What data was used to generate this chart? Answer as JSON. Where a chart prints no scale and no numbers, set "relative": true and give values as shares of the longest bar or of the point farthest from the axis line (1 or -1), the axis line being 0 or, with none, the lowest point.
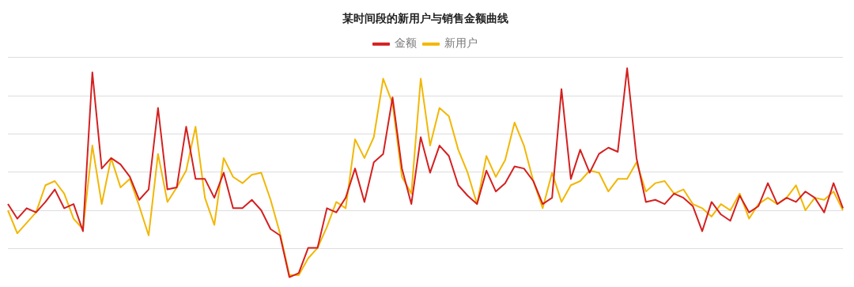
{
  "chart_data": {
    "type": "line",
    "title": "某时间段的新用户与销售金额曲线",
    "relative": true,
    "grid": "y",
    "legend": "top",
    "marker": "none",
    "line_style": "solid",
    "categories": [
      null,
      null,
      null,
      null,
      null,
      null,
      null,
      null,
      null,
      null,
      null,
      null,
      null,
      null,
      null,
      null,
      null,
      null,
      null,
      null,
      null,
      null,
      null,
      null,
      null,
      null,
      null,
      null,
      null,
      null,
      null,
      null,
      null,
      null,
      null,
      null,
      null,
      null,
      null,
      null,
      null,
      null,
      null,
      null,
      null,
      null,
      null,
      null,
      null,
      null,
      null,
      null,
      null,
      null,
      null,
      null,
      null,
      null,
      null,
      null,
      null,
      null,
      null,
      null,
      null,
      null,
      null,
      null,
      null,
      null,
      null,
      null,
      null,
      null,
      null,
      null,
      null,
      null,
      null,
      null,
      null,
      null,
      null,
      null,
      null,
      null,
      null,
      null,
      null,
      null
    ],
    "series": [
      {
        "name": "金额",
        "color": "#d42020",
        "values": [
          0.35,
          0.28,
          0.33,
          0.31,
          0.36,
          0.42,
          0.33,
          0.35,
          0.22,
          0.98,
          0.52,
          0.57,
          0.54,
          0.48,
          0.37,
          0.42,
          0.81,
          0.42,
          0.43,
          0.72,
          0.47,
          0.47,
          0.38,
          0.5,
          0.33,
          0.33,
          0.37,
          0.32,
          0.23,
          0.2,
          0,
          0.02,
          0.14,
          0.14,
          0.33,
          0.31,
          0.38,
          0.52,
          0.36,
          0.55,
          0.59,
          0.86,
          0.52,
          0.35,
          0.67,
          0.5,
          0.63,
          0.58,
          0.44,
          0.39,
          0.35,
          0.51,
          0.41,
          0.45,
          0.53,
          0.52,
          0.46,
          0.35,
          0.38,
          0.9,
          0.47,
          0.61,
          0.5,
          0.59,
          0.62,
          0.6,
          1,
          0.57,
          0.36,
          0.37,
          0.35,
          0.4,
          0.38,
          0.34,
          0.22,
          0.36,
          0.3,
          0.27,
          0.39,
          0.31,
          0.34,
          0.45,
          0.35,
          0.38,
          0.36,
          0.41,
          0.38,
          0.31,
          0.45,
          0.33
        ]
      },
      {
        "name": "新用户",
        "color": "#f2b705",
        "values": [
          0.32,
          0.21,
          0.26,
          0.31,
          0.44,
          0.46,
          0.4,
          0.28,
          0.23,
          0.63,
          0.35,
          0.57,
          0.43,
          0.47,
          0.34,
          0.2,
          0.59,
          0.36,
          0.43,
          0.51,
          0.72,
          0.38,
          0.25,
          0.57,
          0.48,
          0.45,
          0.49,
          0.5,
          0.37,
          0.21,
          0.01,
          0.01,
          0.09,
          0.14,
          0.24,
          0.36,
          0.33,
          0.66,
          0.57,
          0.67,
          0.95,
          0.83,
          0.48,
          0.4,
          0.95,
          0.63,
          0.81,
          0.77,
          0.61,
          0.5,
          0.35,
          0.58,
          0.48,
          0.56,
          0.74,
          0.63,
          0.46,
          0.33,
          0.5,
          0.36,
          0.44,
          0.46,
          0.51,
          0.5,
          0.41,
          0.47,
          0.47,
          0.55,
          0.41,
          0.45,
          0.46,
          0.4,
          0.42,
          0.35,
          0.33,
          0.29,
          0.35,
          0.32,
          0.4,
          0.28,
          0.35,
          0.38,
          0.35,
          0.38,
          0.44,
          0.32,
          0.38,
          0.37,
          0.41,
          0.32
        ]
      }
    ]
  }
}
